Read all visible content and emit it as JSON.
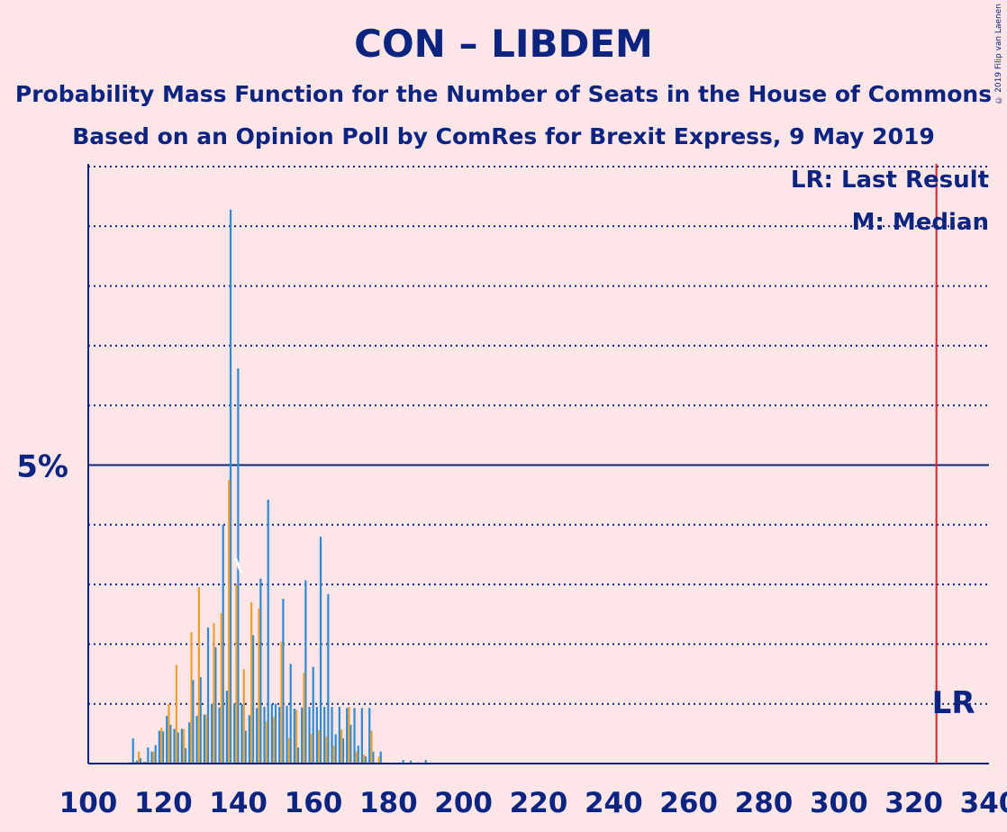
{
  "title": "CON – LIBDEM",
  "subtitle": "Probability Mass Function for the Number of Seats in the House of Commons",
  "subtitle2": "Based on an Opinion Poll by ComRes for Brexit Express, 9 May 2019",
  "copyright": "© 2019 Filip van Laenen",
  "legend": {
    "lr": "LR: Last Result",
    "m": "M: Median"
  },
  "colors": {
    "background": "#fde5e8",
    "text": "#0b2480",
    "bar_blue": "#2e8bd2",
    "bar_orange": "#f0a030",
    "last_result_line": "#e0202a"
  },
  "chart_data": {
    "type": "bar",
    "x_axis": {
      "min": 100,
      "max": 340,
      "ticks": [
        100,
        120,
        140,
        160,
        180,
        200,
        220,
        240,
        260,
        280,
        300,
        320,
        340
      ]
    },
    "y_axis": {
      "min": 0,
      "max": 10,
      "unit": "%",
      "labeled_tick": 5,
      "labeled_tick_text": "5%"
    },
    "grid": "dotted every 1%, solid at 5%",
    "last_result": {
      "seats": 326,
      "label": "LR"
    },
    "median": {
      "seats": 140
    },
    "series": [
      {
        "name": "blue",
        "x": [
          110,
          111,
          112,
          113,
          114,
          115,
          116,
          117,
          118,
          119,
          120,
          121,
          122,
          123,
          124,
          125,
          126,
          127,
          128,
          129,
          130,
          131,
          132,
          133,
          134,
          135,
          136,
          137,
          138,
          139,
          140,
          141,
          142,
          143,
          144,
          145,
          146,
          147,
          148,
          149,
          150,
          151,
          152,
          153,
          154,
          155,
          156,
          157,
          158,
          159,
          160,
          161,
          162,
          163,
          164,
          165,
          166,
          167,
          168,
          169,
          170,
          171,
          172,
          173,
          174,
          175,
          176,
          177,
          178,
          179,
          180,
          181,
          182,
          183,
          184,
          185,
          186,
          187,
          188,
          189,
          190
        ],
        "values": [
          0.01,
          0.02,
          0.42,
          0.05,
          0.09,
          0.03,
          0.27,
          0.2,
          0.31,
          0.55,
          0.54,
          0.8,
          0.65,
          0.58,
          0.52,
          0.58,
          0.26,
          0.69,
          1.4,
          0.8,
          1.45,
          0.82,
          2.28,
          1.0,
          1.95,
          0.94,
          4.0,
          1.22,
          9.28,
          1.0,
          6.62,
          1.0,
          0.55,
          0.81,
          2.15,
          0.93,
          3.1,
          0.95,
          4.42,
          1.0,
          1.0,
          0.95,
          2.76,
          0.97,
          1.67,
          0.92,
          0.27,
          0.94,
          3.07,
          0.95,
          1.62,
          0.95,
          3.8,
          0.95,
          2.84,
          0.95,
          0.49,
          0.95,
          0.42,
          0.93,
          0.65,
          0.93,
          0.3,
          0.93,
          0.12,
          0.93,
          0.2,
          0.02,
          0.2,
          0.01,
          0.01,
          0.01,
          0.01,
          0.02,
          0.06,
          0.01,
          0.05,
          0.01,
          0.02,
          0.01,
          0.06
        ]
      },
      {
        "name": "orange",
        "x": [
          110,
          111,
          112,
          113,
          114,
          115,
          116,
          117,
          118,
          119,
          120,
          121,
          122,
          123,
          124,
          125,
          126,
          127,
          128,
          129,
          130,
          131,
          132,
          133,
          134,
          135,
          136,
          137,
          138,
          139,
          140,
          141,
          142,
          143,
          144,
          145,
          146,
          147,
          148,
          149,
          150,
          151,
          152,
          153,
          154,
          155,
          156,
          157,
          158,
          159,
          160,
          161,
          162,
          163,
          164,
          165,
          166,
          167,
          168,
          169,
          170,
          171,
          172,
          173,
          174,
          175,
          176,
          177,
          178,
          179,
          180,
          181,
          182,
          183,
          184,
          185,
          186,
          187,
          188,
          189,
          190
        ],
        "values": [
          0.01,
          0.02,
          0.02,
          0.2,
          0.02,
          0.03,
          0.02,
          0.2,
          0.02,
          0.6,
          0.02,
          1.0,
          0.02,
          1.65,
          0.02,
          0.58,
          0.02,
          2.2,
          0.02,
          2.95,
          0.02,
          0.82,
          0.02,
          2.35,
          0.02,
          2.52,
          0.02,
          4.75,
          0.02,
          3.0,
          0.02,
          1.58,
          0.02,
          2.7,
          0.02,
          2.6,
          0.02,
          0.7,
          0.02,
          0.78,
          0.02,
          2.04,
          0.02,
          0.43,
          0.02,
          0.9,
          0.02,
          1.52,
          0.02,
          0.5,
          0.02,
          0.56,
          0.02,
          0.45,
          0.02,
          0.3,
          0.02,
          0.57,
          0.02,
          0.95,
          0.02,
          0.2,
          0.02,
          0.15,
          0.02,
          0.55,
          0.02,
          0.12,
          0.02,
          0.02,
          0.01,
          0.01,
          0.01,
          0.01,
          0.01,
          0.01,
          0.01,
          0.01,
          0.01,
          0.01,
          0.01
        ]
      }
    ]
  }
}
